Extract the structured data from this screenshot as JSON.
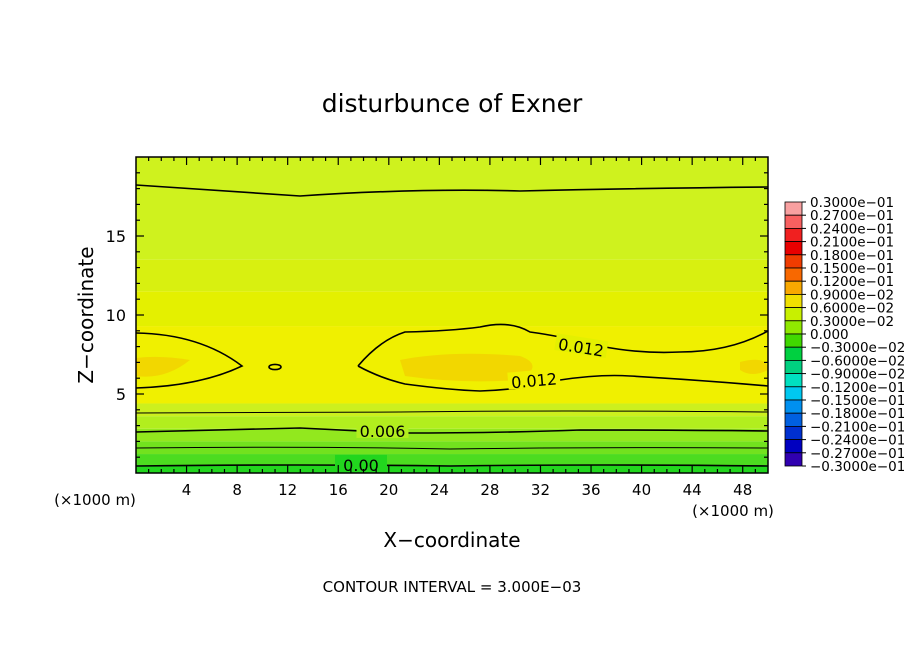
{
  "chart_data": {
    "type": "contour",
    "title": "disturbunce of Exner",
    "xlabel": "X−coordinate",
    "ylabel": "Z−coordinate",
    "x_unit_left": "(×1000 m)",
    "x_unit_right": "(×1000 m)",
    "xlim": [
      0,
      50
    ],
    "ylim": [
      0,
      20
    ],
    "x_ticks": [
      4,
      8,
      12,
      16,
      20,
      24,
      28,
      32,
      36,
      40,
      44,
      48
    ],
    "y_ticks": [
      5,
      10,
      15
    ],
    "footer": "CONTOUR INTERVAL = 3.000E−03",
    "contour_labels": [
      {
        "text": "0.012",
        "x": 35.2,
        "z": 7.9
      },
      {
        "text": "0.012",
        "x": 31.5,
        "z": 5.8
      },
      {
        "text": "0.006",
        "x": 19.5,
        "z": 2.6
      },
      {
        "text": "0.00",
        "x": 17.8,
        "z": 0.45
      }
    ],
    "colorbar": {
      "levels": [
        "0.3000e−01",
        "0.2700e−01",
        "0.2400e−01",
        "0.2100e−01",
        "0.1800e−01",
        "0.1500e−01",
        "0.1200e−01",
        "0.9000e−02",
        "0.6000e−02",
        "0.3000e−02",
        "0.000",
        "−0.3000e−02",
        "−0.6000e−02",
        "−0.9000e−02",
        "−0.1200e−01",
        "−0.1500e−01",
        "−0.1800e−01",
        "−0.2100e−01",
        "−0.2400e−01",
        "−0.2700e−01",
        "−0.3000e−01"
      ],
      "colors": [
        "#f8a0a0",
        "#f86060",
        "#f02020",
        "#e80000",
        "#f03c00",
        "#f86800",
        "#f8a800",
        "#f0e000",
        "#c8f000",
        "#90e800",
        "#40d800",
        "#00d040",
        "#00d080",
        "#00e0c0",
        "#00c8f0",
        "#0090f0",
        "#0060e0",
        "#0030d0",
        "#0000c0",
        "#3000b0",
        "#7020b0"
      ]
    },
    "bands": [
      {
        "z": [
          0,
          0.5
        ],
        "color": "#22d61e"
      },
      {
        "z": [
          0.5,
          1.2
        ],
        "color": "#4cdc20"
      },
      {
        "z": [
          1.2,
          2.0
        ],
        "color": "#72e21e"
      },
      {
        "z": [
          2.0,
          2.8
        ],
        "color": "#92e81e"
      },
      {
        "z": [
          2.8,
          3.6
        ],
        "color": "#b2ee1e"
      },
      {
        "z": [
          3.6,
          4.4
        ],
        "color": "#ccf01e"
      },
      {
        "z": [
          4.4,
          9.3
        ],
        "color": "#f0f000"
      },
      {
        "z": [
          9.3,
          11.5
        ],
        "color": "#e4f000"
      },
      {
        "z": [
          11.5,
          13.5
        ],
        "color": "#d8f010"
      },
      {
        "z": [
          13.5,
          20
        ],
        "color": "#cff21e"
      }
    ]
  }
}
